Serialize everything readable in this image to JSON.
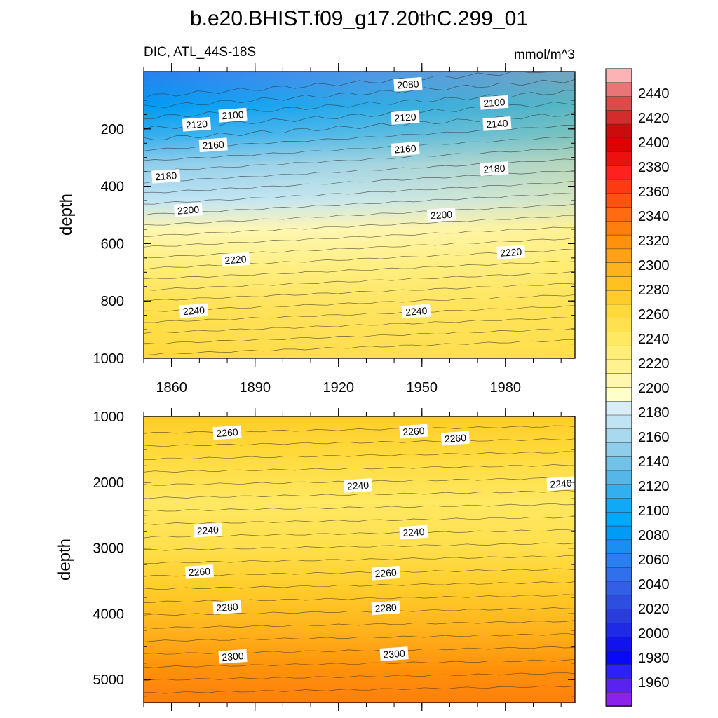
{
  "chart_data": {
    "type": "heatmap",
    "title": "b.e20.BHIST.f09_g17.20thC.299_01",
    "subtitle_left": "DIC, ATL_44S-18S",
    "subtitle_right": "mmol/m^3",
    "ylabel": "depth",
    "x_ticks": [
      1860,
      1890,
      1920,
      1950,
      1980
    ],
    "xlim": [
      1850,
      2005
    ],
    "panels": [
      {
        "name": "upper",
        "ylim": [
          0,
          1000
        ],
        "y_ticks": [
          200,
          400,
          600,
          800,
          1000
        ],
        "contour_labels": [
          {
            "text": "2080",
            "x": 1945,
            "y": 45
          },
          {
            "text": "2100",
            "x": 1882,
            "y": 152
          },
          {
            "text": "2100",
            "x": 1976,
            "y": 108
          },
          {
            "text": "2120",
            "x": 1869,
            "y": 184
          },
          {
            "text": "2120",
            "x": 1944,
            "y": 160
          },
          {
            "text": "2140",
            "x": 1977,
            "y": 182
          },
          {
            "text": "2160",
            "x": 1875,
            "y": 256
          },
          {
            "text": "2160",
            "x": 1944,
            "y": 270
          },
          {
            "text": "2180",
            "x": 1858,
            "y": 365
          },
          {
            "text": "2180",
            "x": 1976,
            "y": 339
          },
          {
            "text": "2200",
            "x": 1866,
            "y": 483
          },
          {
            "text": "2200",
            "x": 1957,
            "y": 500
          },
          {
            "text": "2220",
            "x": 1883,
            "y": 656
          },
          {
            "text": "2220",
            "x": 1982,
            "y": 630
          },
          {
            "text": "2240",
            "x": 1868,
            "y": 834
          },
          {
            "text": "2240",
            "x": 1948,
            "y": 836
          }
        ]
      },
      {
        "name": "lower",
        "ylim": [
          1000,
          5350
        ],
        "y_ticks": [
          1000,
          2000,
          3000,
          4000,
          5000
        ],
        "contour_labels": [
          {
            "text": "2260",
            "x": 1880,
            "y": 1245
          },
          {
            "text": "2260",
            "x": 1947,
            "y": 1225
          },
          {
            "text": "2260",
            "x": 1962,
            "y": 1330
          },
          {
            "text": "2240",
            "x": 1927,
            "y": 2050
          },
          {
            "text": "2240",
            "x": 2013,
            "y": 2020
          },
          {
            "text": "2240",
            "x": 1873,
            "y": 2730
          },
          {
            "text": "2240",
            "x": 1947,
            "y": 2760
          },
          {
            "text": "2260",
            "x": 1870,
            "y": 3360
          },
          {
            "text": "2260",
            "x": 1937,
            "y": 3380
          },
          {
            "text": "2280",
            "x": 1880,
            "y": 3900
          },
          {
            "text": "2280",
            "x": 1937,
            "y": 3910
          },
          {
            "text": "2300",
            "x": 1882,
            "y": 4650
          },
          {
            "text": "2300",
            "x": 1940,
            "y": 4610
          }
        ]
      }
    ],
    "colorbar": {
      "labels": [
        2440,
        2420,
        2400,
        2380,
        2360,
        2340,
        2320,
        2300,
        2280,
        2260,
        2240,
        2220,
        2200,
        2180,
        2160,
        2140,
        2120,
        2100,
        2080,
        2060,
        2040,
        2020,
        2000,
        1980,
        1960
      ],
      "colors": [
        "#fbb3b6",
        "#e97576",
        "#dc4a4a",
        "#d22c2c",
        "#cc0c0c",
        "#e00000",
        "#ee0f0f",
        "#ff2020",
        "#ff3a12",
        "#ff5210",
        "#ff6a12",
        "#ff7f0e",
        "#ff920a",
        "#ffa314",
        "#ffb21c",
        "#ffc11f",
        "#ffcd2a",
        "#ffd93a",
        "#ffe04e",
        "#ffe862",
        "#ffee78",
        "#fff28f",
        "#fff6b0",
        "#ffffcc",
        "#d9edf6",
        "#c0e4f3",
        "#a9d9ef",
        "#8fcdea",
        "#72c1e7",
        "#55b7e9",
        "#33aeee",
        "#0fa9f6",
        "#00a8ff",
        "#009bf3",
        "#1b8ff0",
        "#2a80ee",
        "#3071eb",
        "#325fe6",
        "#2e4ee0",
        "#2a3cdc",
        "#1f2ae6",
        "#1212ee",
        "#0909f8",
        "#2c22f8",
        "#5a22f0",
        "#8a22ec"
      ]
    }
  }
}
